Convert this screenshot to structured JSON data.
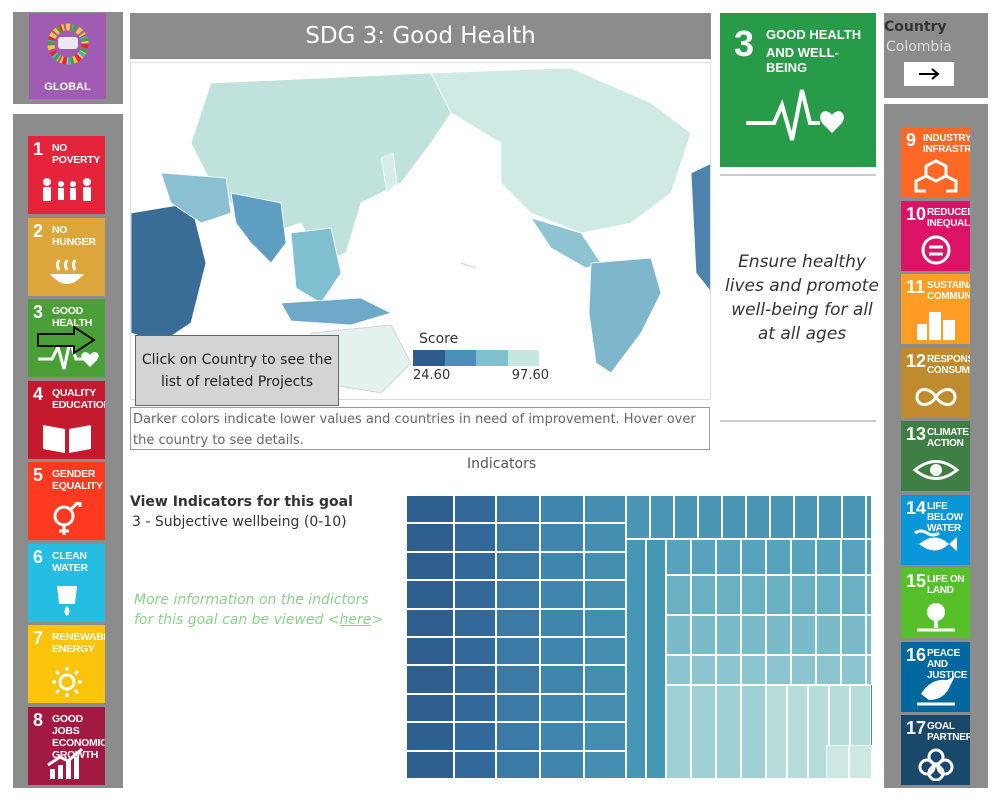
{
  "header": {
    "title": "SDG  3: Good Health"
  },
  "global_tile": {
    "label": "GLOBAL"
  },
  "country_panel": {
    "label": "Country",
    "value": "Colombia"
  },
  "featured_goal": {
    "number": "3",
    "title_line1": "GOOD HEALTH",
    "title_line2": "AND WELL-BEING",
    "color": "#279b48"
  },
  "goal_description": "Ensure healthy lives and promote well-being for all at all ages",
  "map": {
    "legend_title": "Score",
    "legend_min": "24.60",
    "legend_max": "97.60",
    "legend_colors": [
      "#2f5b8a",
      "#4a90b8",
      "#7fbfcf",
      "#c7e6e0"
    ],
    "callout": "Click on Country to see the list of related Projects",
    "note": "Darker colors indicate lower values and countries in need of improvement.  Hover over the country to see details."
  },
  "indicators": {
    "section_title": "Indicators",
    "heading": "View Indicators for this goal",
    "selected": "3 - Subjective wellbeing (0-10)",
    "more_info_prefix": "More information on the indictors for this goal can be viewed <",
    "more_info_link": "here",
    "more_info_suffix": ">"
  },
  "left_goals": [
    {
      "num": "1",
      "label": "NO POVERTY",
      "color": "#e5243b",
      "icon": "people-icon"
    },
    {
      "num": "2",
      "label": "NO HUNGER",
      "color": "#dda63a",
      "icon": "bowl-icon"
    },
    {
      "num": "3",
      "label": "GOOD HEALTH",
      "color": "#4c9f38",
      "icon": "heartbeat-icon"
    },
    {
      "num": "4",
      "label": "QUALITY EDUCATION",
      "color": "#c5192d",
      "icon": "book-icon"
    },
    {
      "num": "5",
      "label": "GENDER EQUALITY",
      "color": "#ff3a21",
      "icon": "gender-icon"
    },
    {
      "num": "6",
      "label": "CLEAN WATER",
      "color": "#26bde2",
      "icon": "water-drop-icon"
    },
    {
      "num": "7",
      "label": "RENEWABLE ENERGY",
      "color": "#fcc30b",
      "icon": "sun-icon"
    },
    {
      "num": "8",
      "label": "GOOD JOBS ECONOMIC GROWTH",
      "color": "#a21942",
      "icon": "growth-chart-icon"
    }
  ],
  "right_goals": [
    {
      "num": "9",
      "label": "INDUSTRY, INFRASTRUCTURE",
      "color": "#fd6925",
      "icon": "cubes-icon"
    },
    {
      "num": "10",
      "label": "REDUCED INEQUALITIES",
      "color": "#dd1367",
      "icon": "equal-icon"
    },
    {
      "num": "11",
      "label": "SUSTAINABLE COMMUNITIES",
      "color": "#fd9d24",
      "icon": "buildings-icon"
    },
    {
      "num": "12",
      "label": "RESPONSIBLE CONSUMPTION",
      "color": "#bf8b2e",
      "icon": "infinity-icon"
    },
    {
      "num": "13",
      "label": "CLIMATE ACTION",
      "color": "#3f7e44",
      "icon": "eye-icon"
    },
    {
      "num": "14",
      "label": "LIFE BELOW WATER",
      "color": "#0a97d9",
      "icon": "fish-icon"
    },
    {
      "num": "15",
      "label": "LIFE ON LAND",
      "color": "#56c02b",
      "icon": "tree-icon"
    },
    {
      "num": "16",
      "label": "PEACE AND JUSTICE",
      "color": "#00689d",
      "icon": "dove-icon"
    },
    {
      "num": "17",
      "label": "GOAL PARTNERS",
      "color": "#19486a",
      "icon": "rings-icon"
    }
  ]
}
